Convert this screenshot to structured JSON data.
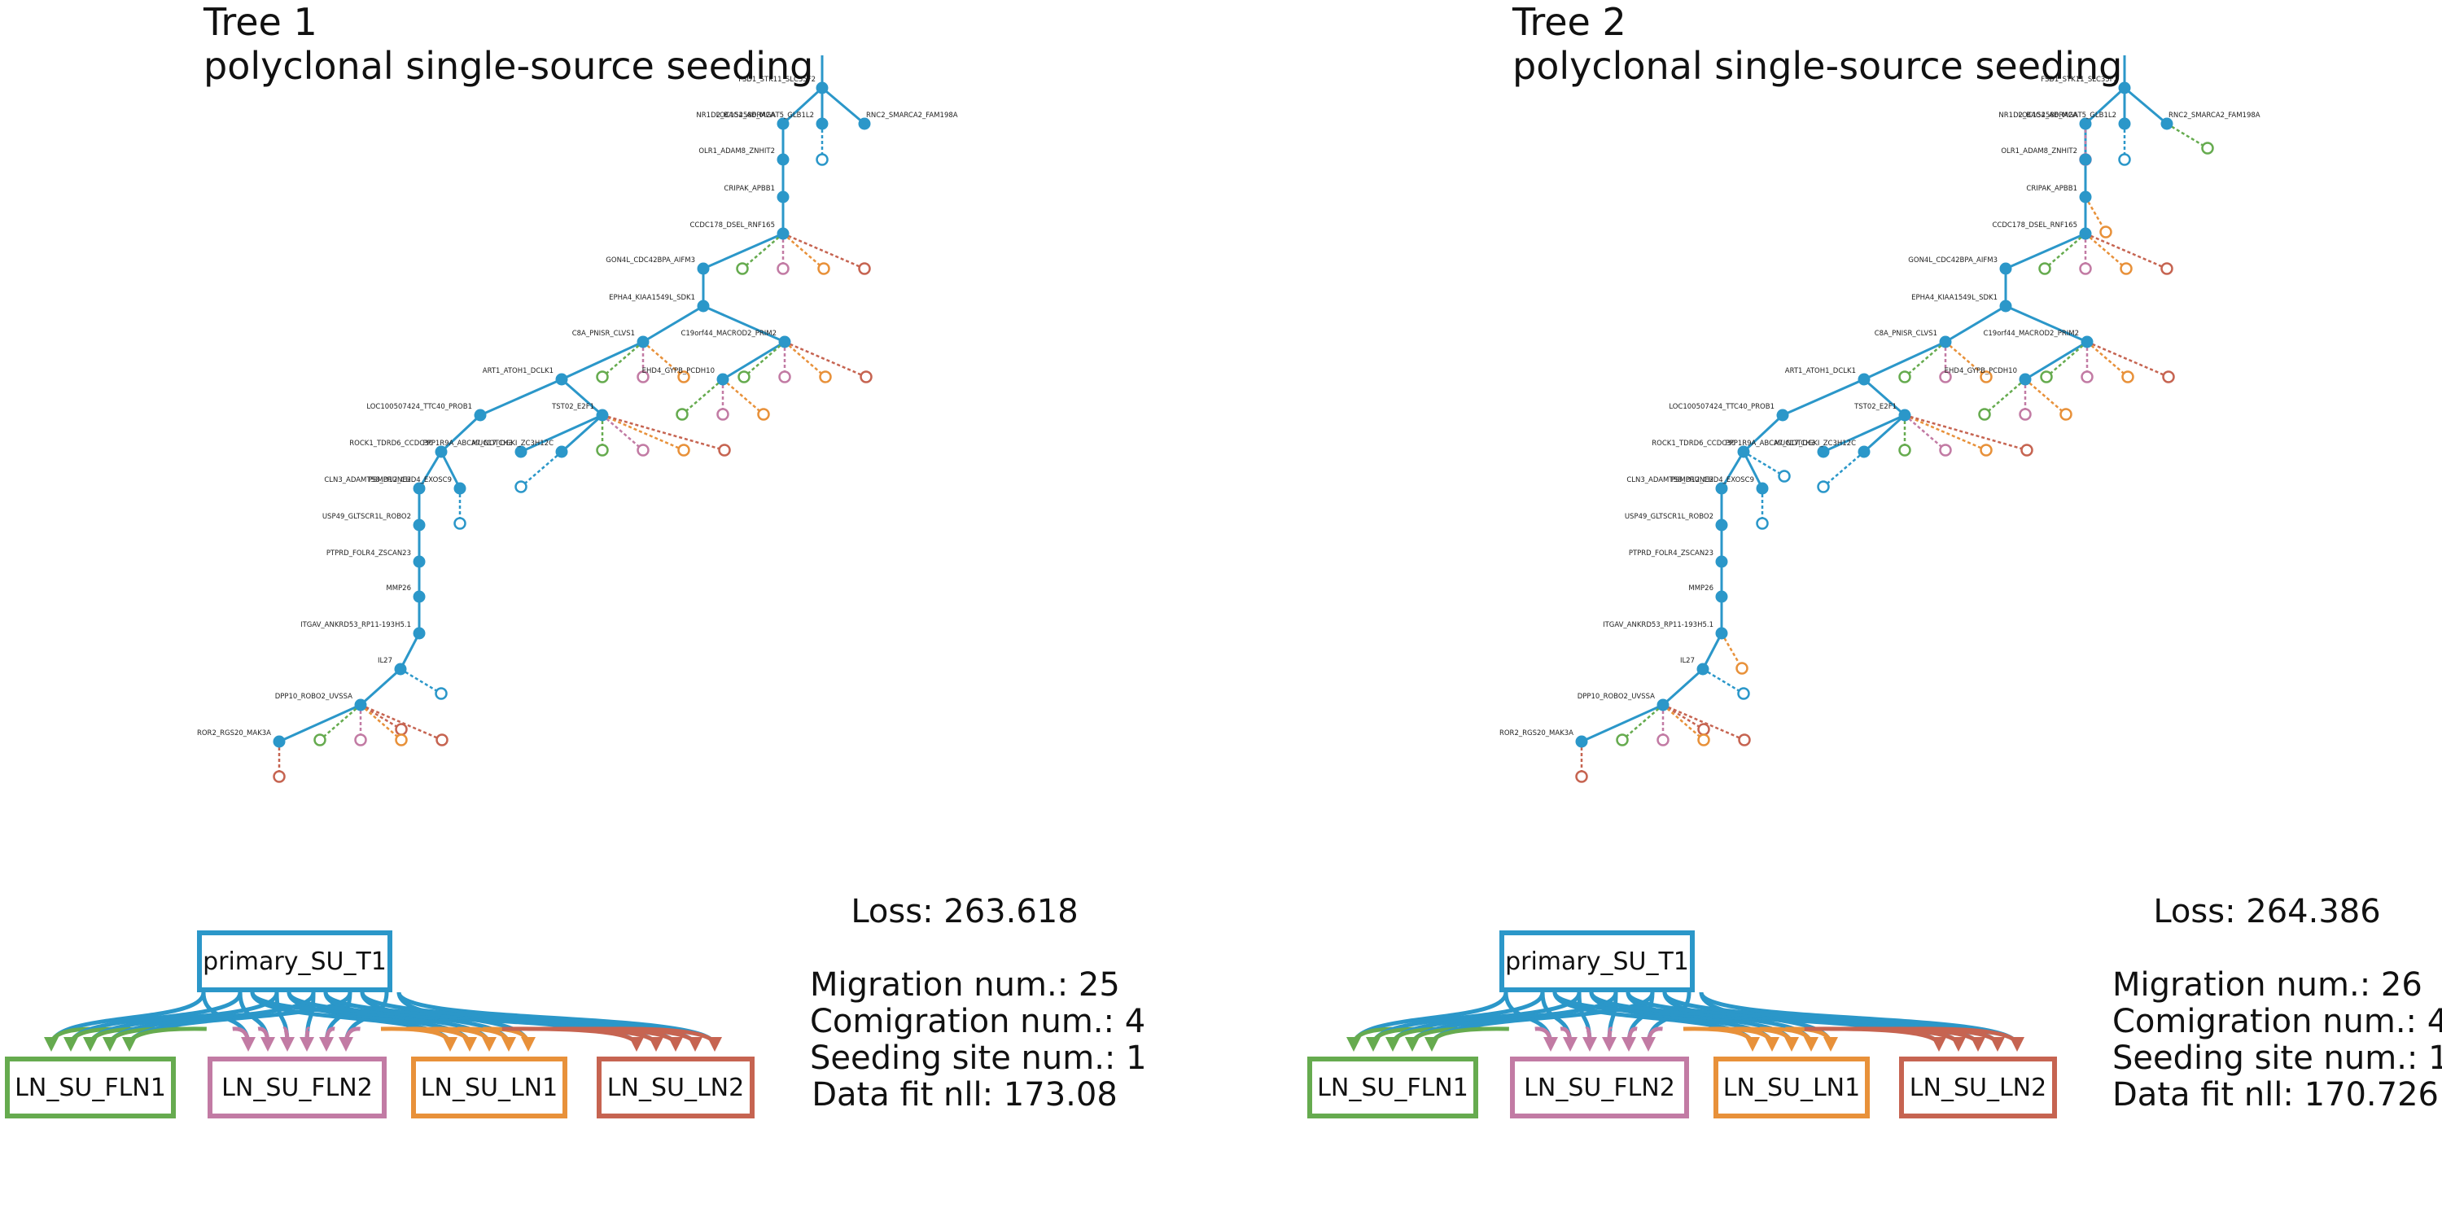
{
  "colors": {
    "primary": "#2b97c9",
    "LN_SU_FLN1": "#66ab4f",
    "LN_SU_FLN2": "#c27ba4",
    "LN_SU_LN1": "#e8913a",
    "LN_SU_LN2": "#c66451"
  },
  "panels": [
    {
      "title_line1": "Tree 1",
      "title_line2": "polyclonal single-source seeding",
      "stats": {
        "loss": "Loss: 263.618",
        "migration": "Migration num.: 25",
        "comigration": "Comigration num.: 4",
        "seeding": "Seeding site num.: 1",
        "nll": "Data fit nll: 173.08"
      },
      "sites": {
        "primary": "primary_SU_T1",
        "s1": "LN_SU_FLN1",
        "s2": "LN_SU_FLN2",
        "s3": "LN_SU_LN1",
        "s4": "LN_SU_LN2"
      },
      "labels": {
        "root": "FSD1_STK11_SLC35F2",
        "n1": "NR1D2_BAG4_ADRA2A",
        "n1b": "LOC152586_MGAT5_GLB1L2",
        "n1c": "RNC2_SMARCA2_FAM198A",
        "n2": "OLR1_ADAM8_ZNHIT2",
        "n3": "CRIPAK_APBB1",
        "n4": "CCDC178_DSEL_RNF165",
        "n5": "GON4L_CDC42BPA_AIFM3",
        "n6": "EPHA4_KIAA1549L_SDK1",
        "n7": "C8A_PNISR_CLVS1",
        "n8": "C19orf44_MACROD2_PRIM2",
        "n9": "ART1_ATOH1_DCLK1",
        "n10": "EHD4_GYPB_PCDH10",
        "n11": "LOC100507424_TTC40_PROB1",
        "n12": "TST02_E2F1",
        "n13": "ROCK1_TDRD6_CCDC30",
        "n14": "PPP1R9A_ABCA7_NOTCH3",
        "n15": "MUC17_DGKI_ZC3H12C",
        "n16": "CLN3_ADAMTS8_PRUNE2",
        "n17": "PSMD12_CHD4_EXOSC9",
        "n18": "USP49_GLTSCR1L_ROBO2",
        "n19": "PTPRD_FOLR4_ZSCAN23",
        "n20": "MMP26",
        "n21": "ITGAV_ANKRD53_RP11-193H5.1",
        "n22": "IL27",
        "n23": "DPP10_ROBO2_UVSSA",
        "n24": "ROR2_RGS20_MAK3A"
      }
    },
    {
      "title_line1": "Tree 2",
      "title_line2": "polyclonal single-source seeding",
      "stats": {
        "loss": "Loss: 264.386",
        "migration": "Migration num.: 26",
        "comigration": "Comigration num.: 4",
        "seeding": "Seeding site num.: 1",
        "nll": "Data fit nll: 170.726"
      },
      "sites": {
        "primary": "primary_SU_T1",
        "s1": "LN_SU_FLN1",
        "s2": "LN_SU_FLN2",
        "s3": "LN_SU_LN1",
        "s4": "LN_SU_LN2"
      },
      "labels": {
        "root": "FSD1_STK11_SLC35F2",
        "n1": "NR1D2_BAG4_ADRA2A",
        "n1b": "LOC152586_MGAT5_GLB1L2",
        "n1c": "RNC2_SMARCA2_FAM198A",
        "n2": "OLR1_ADAM8_ZNHIT2",
        "n3": "CRIPAK_APBB1",
        "n4": "CCDC178_DSEL_RNF165",
        "n5": "GON4L_CDC42BPA_AIFM3",
        "n6": "EPHA4_KIAA1549L_SDK1",
        "n7": "C8A_PNISR_CLVS1",
        "n8": "C19orf44_MACROD2_PRIM2",
        "n9": "ART1_ATOH1_DCLK1",
        "n10": "EHD4_GYPB_PCDH10",
        "n11": "LOC100507424_TTC40_PROB1",
        "n12": "TST02_E2F1",
        "n13": "ROCK1_TDRD6_CCDC30",
        "n14": "PPP1R9A_ABCA7_NOTCH3",
        "n15": "MUC17_DGKI_ZC3H12C",
        "n16": "CLN3_ADAMTS8_PRUNE2",
        "n17": "PSMD12_CHD4_EXOSC9",
        "n18": "USP49_GLTSCR1L_ROBO2",
        "n19": "PTPRD_FOLR4_ZSCAN23",
        "n20": "MMP26",
        "n21": "ITGAV_ANKRD53_RP11-193H5.1",
        "n22": "IL27",
        "n23": "DPP10_ROBO2_UVSSA",
        "n24": "ROR2_RGS20_MAK3A"
      }
    }
  ]
}
